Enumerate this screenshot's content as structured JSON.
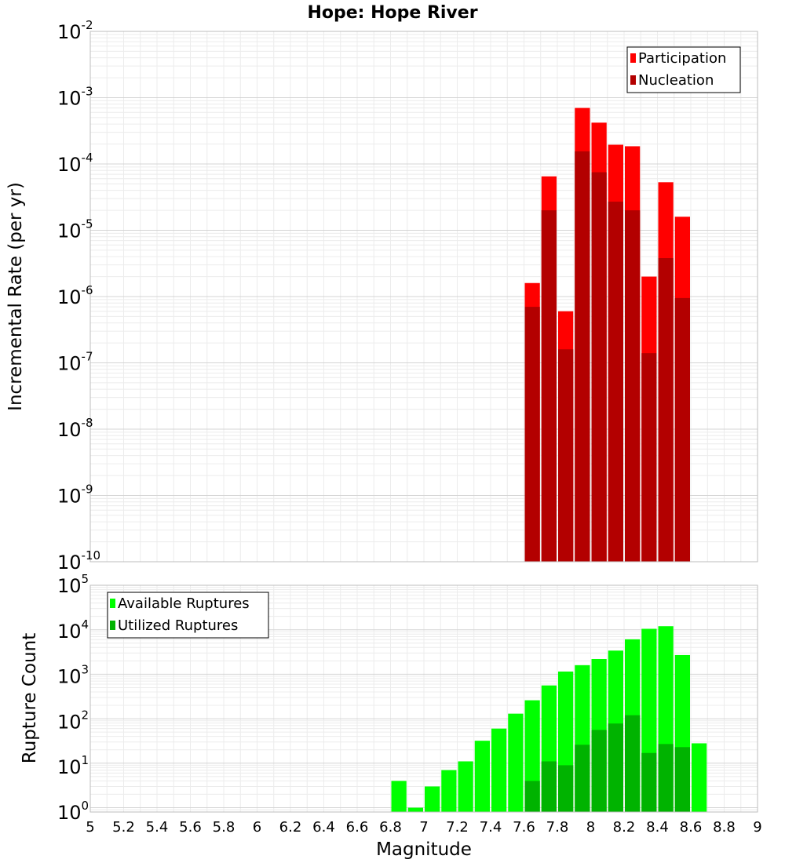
{
  "chart_data": [
    {
      "type": "bar",
      "title": "Hope: Hope River",
      "xlabel": "Magnitude",
      "ylabel": "Incremental Rate (per yr)",
      "xlim": [
        5,
        9
      ],
      "ylim": [
        1e-10,
        0.01
      ],
      "yscale": "log",
      "bin_width": 0.1,
      "legend_position": "top-right",
      "grid": true,
      "x": [
        7.65,
        7.75,
        7.85,
        7.95,
        8.05,
        8.15,
        8.25,
        8.35,
        8.45,
        8.55
      ],
      "series": [
        {
          "name": "Participation",
          "color": "#ff0000",
          "values": [
            1.6e-06,
            6.5e-05,
            6e-07,
            0.0007,
            0.00042,
            0.000195,
            0.000185,
            2e-06,
            5.3e-05,
            1.6e-05
          ]
        },
        {
          "name": "Nucleation",
          "color": "#b30000",
          "values": [
            7e-07,
            2e-05,
            1.6e-07,
            0.000155,
            7.5e-05,
            2.7e-05,
            2e-05,
            1.4e-07,
            3.8e-06,
            9.5e-07
          ]
        }
      ]
    },
    {
      "type": "bar",
      "title": "",
      "xlabel": "Magnitude",
      "ylabel": "Rupture Count",
      "xlim": [
        5,
        9
      ],
      "ylim": [
        0.8,
        100000.0
      ],
      "yscale": "log",
      "bin_width": 0.1,
      "legend_position": "top-left",
      "grid": true,
      "x": [
        6.85,
        6.95,
        7.05,
        7.15,
        7.25,
        7.35,
        7.45,
        7.55,
        7.65,
        7.75,
        7.85,
        7.95,
        8.05,
        8.15,
        8.25,
        8.35,
        8.45,
        8.55,
        8.65
      ],
      "series": [
        {
          "name": "Available Ruptures",
          "color": "#00ff00",
          "values": [
            4,
            1,
            3,
            7,
            11,
            32,
            60,
            130,
            260,
            560,
            1150,
            1600,
            2200,
            3400,
            6100,
            10500,
            12000,
            2700,
            28
          ]
        },
        {
          "name": "Utilized Ruptures",
          "color": "#00b300",
          "values": [
            null,
            null,
            null,
            null,
            null,
            null,
            null,
            null,
            4,
            11,
            9,
            26,
            56,
            78,
            120,
            17,
            27,
            23,
            null
          ]
        }
      ]
    }
  ],
  "x_ticks": [
    "5",
    "5.2",
    "5.4",
    "5.6",
    "5.8",
    "6",
    "6.2",
    "6.4",
    "6.6",
    "6.8",
    "7",
    "7.2",
    "7.4",
    "7.6",
    "7.8",
    "8",
    "8.2",
    "8.4",
    "8.6",
    "8.8",
    "9"
  ],
  "top_y_ticks": [
    {
      "base": "10",
      "exp": "-2"
    },
    {
      "base": "10",
      "exp": "-3"
    },
    {
      "base": "10",
      "exp": "-4"
    },
    {
      "base": "10",
      "exp": "-5"
    },
    {
      "base": "10",
      "exp": "-6"
    },
    {
      "base": "10",
      "exp": "-7"
    },
    {
      "base": "10",
      "exp": "-8"
    },
    {
      "base": "10",
      "exp": "-9"
    },
    {
      "base": "10",
      "exp": "-10"
    }
  ],
  "bottom_y_ticks": [
    {
      "base": "10",
      "exp": "5"
    },
    {
      "base": "10",
      "exp": "4"
    },
    {
      "base": "10",
      "exp": "3"
    },
    {
      "base": "10",
      "exp": "2"
    },
    {
      "base": "10",
      "exp": "1"
    },
    {
      "base": "10",
      "exp": "0"
    }
  ]
}
